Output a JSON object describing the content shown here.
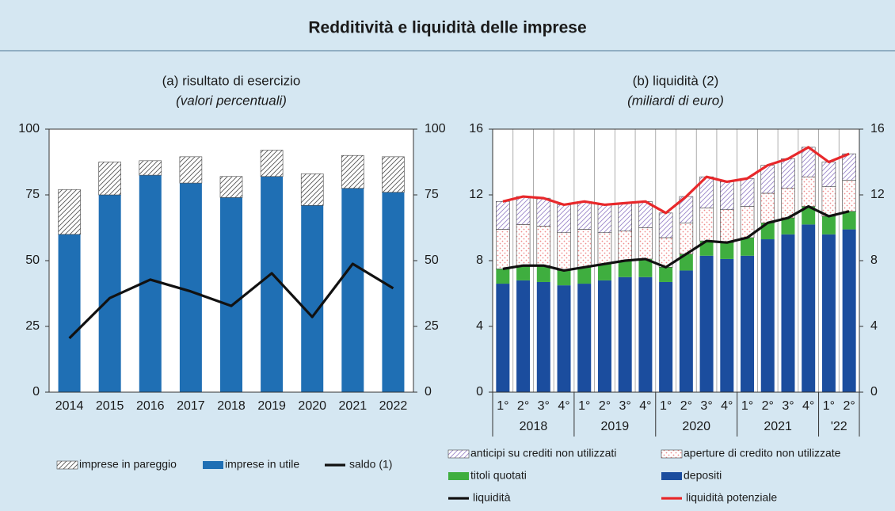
{
  "title": "Redditività e liquidità delle imprese",
  "chart_data": [
    {
      "type": "bar_line",
      "title": "(a) risultato di esercizio",
      "subtitle": "(valori percentuali)",
      "categories": [
        "2014",
        "2015",
        "2016",
        "2017",
        "2018",
        "2019",
        "2020",
        "2021",
        "2022"
      ],
      "series": [
        {
          "name": "imprese in pareggio",
          "kind": "bar",
          "color": "#555555",
          "pattern": "hatch",
          "values": [
            17,
            12.5,
            5.5,
            10,
            8,
            10,
            12,
            12.5,
            13.5
          ]
        },
        {
          "name": "imprese in utile",
          "kind": "bar",
          "color": "#1f6fb4",
          "values": [
            60,
            75,
            82.5,
            79.5,
            74,
            82,
            71,
            77.5,
            76
          ]
        },
        {
          "name": "saldo (1)",
          "kind": "line",
          "color": "#111111",
          "values": [
            20.5,
            35.8,
            42.8,
            38.3,
            32.8,
            45.2,
            28.6,
            48.8,
            39.5
          ]
        }
      ],
      "ylim": [
        0,
        100
      ],
      "yticks": [
        0,
        25,
        50,
        75,
        100
      ],
      "mirror_y_axis": true,
      "legend_columns": 3
    },
    {
      "type": "bar_line",
      "title": "(b) liquidità (2)",
      "subtitle": "(miliardi di euro)",
      "categories": [
        "1°",
        "2°",
        "3°",
        "4°",
        "1°",
        "2°",
        "3°",
        "4°",
        "1°",
        "2°",
        "3°",
        "4°",
        "1°",
        "2°",
        "3°",
        "4°",
        "1°",
        "2°"
      ],
      "year_groups": [
        {
          "label": "2018",
          "count": 4
        },
        {
          "label": "2019",
          "count": 4
        },
        {
          "label": "2020",
          "count": 4
        },
        {
          "label": "2021",
          "count": 4
        },
        {
          "label": "'22",
          "count": 2
        }
      ],
      "series": [
        {
          "name": "anticipi su crediti non utilizzati",
          "kind": "bar",
          "color": "#9b86c9",
          "pattern": "hatch",
          "values": [
            1.7,
            1.7,
            1.7,
            1.7,
            1.7,
            1.7,
            1.7,
            1.6,
            1.5,
            1.6,
            1.9,
            1.7,
            1.7,
            1.7,
            1.8,
            1.8,
            1.5,
            1.6
          ]
        },
        {
          "name": "aperture di credito non utilizzate",
          "kind": "bar",
          "color": "#ef8a8a",
          "pattern": "dots",
          "values": [
            2.4,
            2.5,
            2.4,
            2.3,
            2.3,
            1.9,
            1.8,
            1.9,
            1.8,
            1.9,
            2.0,
            2.0,
            1.9,
            1.8,
            1.8,
            1.8,
            1.8,
            1.9
          ]
        },
        {
          "name": "titoli quotati",
          "kind": "bar",
          "color": "#3fae3f",
          "values": [
            0.9,
            0.9,
            1.0,
            0.9,
            1.0,
            1.0,
            1.0,
            1.1,
            0.9,
            1.0,
            0.9,
            1.0,
            1.1,
            1.0,
            1.0,
            1.1,
            1.1,
            1.1
          ]
        },
        {
          "name": "depositi",
          "kind": "bar",
          "color": "#1b4d9e",
          "values": [
            6.6,
            6.8,
            6.7,
            6.5,
            6.6,
            6.8,
            7.0,
            7.0,
            6.7,
            7.4,
            8.3,
            8.1,
            8.3,
            9.3,
            9.6,
            10.2,
            9.6,
            9.9
          ]
        },
        {
          "name": "liquidità",
          "kind": "line",
          "color": "#111111",
          "values": [
            7.5,
            7.7,
            7.7,
            7.4,
            7.6,
            7.8,
            8.0,
            8.1,
            7.6,
            8.4,
            9.2,
            9.1,
            9.4,
            10.3,
            10.6,
            11.3,
            10.7,
            11.0
          ]
        },
        {
          "name": "liquidità potenziale",
          "kind": "line",
          "color": "#e8282b",
          "values": [
            11.6,
            11.9,
            11.8,
            11.4,
            11.6,
            11.4,
            11.5,
            11.6,
            10.9,
            11.9,
            13.1,
            12.8,
            13.0,
            13.8,
            14.2,
            14.9,
            14.0,
            14.5
          ]
        }
      ],
      "ylim": [
        0,
        16
      ],
      "yticks": [
        0,
        4,
        8,
        12,
        16
      ],
      "mirror_y_axis": true,
      "category_separators": true,
      "legend_columns": 2
    }
  ]
}
